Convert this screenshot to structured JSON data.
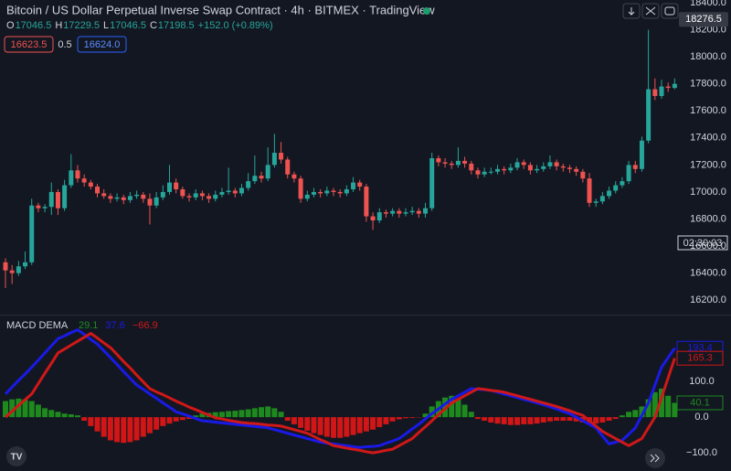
{
  "header": {
    "title": "Bitcoin / US Dollar Perpetual Inverse Swap Contract · 4h · BITMEX · TradingView",
    "ohlc": [
      {
        "key": "O",
        "value": "17046.5"
      },
      {
        "key": "H",
        "value": "17229.5"
      },
      {
        "key": "L",
        "value": "17046.5"
      },
      {
        "key": "C",
        "value": "17198.5"
      }
    ],
    "change": "+152.0 (+0.89%)"
  },
  "order_boxes": {
    "sell": "16623.5",
    "spread": "0.5",
    "buy": "16624.0"
  },
  "countdown": "02:30:03",
  "chart_data": [
    {
      "type": "candlestick",
      "up_color": "#26a69a",
      "down_color": "#ef5350",
      "grid": false,
      "last_price": 18276.5,
      "ylim": [
        16100,
        18420
      ],
      "yticks": [
        {
          "value": 16200,
          "label": "16200.0"
        },
        {
          "value": 16400,
          "label": "16400.0"
        },
        {
          "value": 16600,
          "label": "16600.0"
        },
        {
          "value": 16800,
          "label": "16800.0"
        },
        {
          "value": 17000,
          "label": "17000.0"
        },
        {
          "value": 17200,
          "label": "17200.0"
        },
        {
          "value": 17400,
          "label": "17400.0"
        },
        {
          "value": 17600,
          "label": "17600.0"
        },
        {
          "value": 17800,
          "label": "17800.0"
        },
        {
          "value": 18000,
          "label": "18000.0"
        },
        {
          "value": 18200,
          "label": "18200.0"
        },
        {
          "value": 18400,
          "label": "18400.0"
        }
      ],
      "open": [
        16480,
        16420,
        16400,
        16450,
        16480,
        16900,
        16880,
        16890,
        17000,
        16880,
        17050,
        17160,
        17100,
        17070,
        17040,
        16990,
        16970,
        16950,
        16960,
        16940,
        16970,
        16980,
        16950,
        16900,
        16960,
        17000,
        17070,
        17020,
        16970,
        16960,
        16990,
        16970,
        16950,
        16980,
        17000,
        17010,
        16990,
        17030,
        17080,
        17120,
        17100,
        17200,
        17290,
        17240,
        17130,
        17100,
        16950,
        16980,
        17000,
        16990,
        17010,
        17000,
        16990,
        17020,
        17070,
        17040,
        16820,
        16790,
        16850,
        16840,
        16860,
        16840,
        16850,
        16860,
        16840,
        16880,
        17250,
        17220,
        17210,
        17200,
        17230,
        17210,
        17160,
        17130,
        17150,
        17150,
        17170,
        17160,
        17180,
        17220,
        17200,
        17160,
        17170,
        17190,
        17220,
        17190,
        17180,
        17170,
        17150,
        17100,
        16920,
        16930,
        16970,
        17010,
        17050,
        17080,
        17200,
        17170,
        17380,
        17760,
        17710,
        17780,
        17770
      ],
      "high": [
        16510,
        16460,
        16490,
        16560,
        16950,
        16920,
        16910,
        17070,
        17020,
        17090,
        17280,
        17200,
        17130,
        17090,
        17060,
        17020,
        16990,
        16990,
        16980,
        17000,
        17010,
        17000,
        16990,
        17000,
        17050,
        17200,
        17100,
        17040,
        16990,
        17020,
        17010,
        16990,
        17010,
        17030,
        17180,
        17030,
        17060,
        17140,
        17270,
        17150,
        17330,
        17430,
        17370,
        17260,
        17150,
        17120,
        17010,
        17030,
        17020,
        17040,
        17030,
        17020,
        17050,
        17110,
        17090,
        17060,
        16850,
        16880,
        16870,
        16880,
        16880,
        16880,
        16890,
        16880,
        16920,
        17290,
        17270,
        17250,
        17230,
        17330,
        17260,
        17230,
        17180,
        17180,
        17180,
        17200,
        17190,
        17210,
        17250,
        17240,
        17220,
        17200,
        17220,
        17270,
        17240,
        17210,
        17200,
        17190,
        17170,
        17140,
        16950,
        17000,
        17040,
        17080,
        17110,
        17230,
        17230,
        17410,
        18200,
        17840,
        17830,
        17810,
        17840
      ],
      "low": [
        16290,
        16320,
        16380,
        16430,
        16460,
        16850,
        16850,
        16830,
        16830,
        16860,
        17030,
        17070,
        17040,
        17020,
        16960,
        16950,
        16920,
        16930,
        16910,
        16920,
        16950,
        16920,
        16760,
        16880,
        16940,
        16980,
        16990,
        16950,
        16930,
        16940,
        16940,
        16920,
        16930,
        16960,
        16980,
        16960,
        16970,
        17010,
        17060,
        17070,
        17080,
        17180,
        17210,
        17100,
        17070,
        16920,
        16930,
        16960,
        16960,
        16970,
        16970,
        16960,
        16970,
        17000,
        17010,
        16780,
        16720,
        16770,
        16810,
        16820,
        16810,
        16820,
        16830,
        16810,
        16810,
        16860,
        17190,
        17180,
        17170,
        17180,
        17180,
        17130,
        17100,
        17110,
        17130,
        17130,
        17130,
        17140,
        17160,
        17170,
        17130,
        17140,
        17150,
        17170,
        17160,
        17150,
        17140,
        17120,
        17070,
        16890,
        16890,
        16910,
        16950,
        16990,
        17030,
        17060,
        17140,
        17150,
        17360,
        17680,
        17690,
        17740,
        17760
      ],
      "close": [
        16420,
        16400,
        16450,
        16480,
        16900,
        16880,
        16890,
        17000,
        16880,
        17050,
        17160,
        17100,
        17070,
        17040,
        16990,
        16970,
        16950,
        16960,
        16940,
        16970,
        16980,
        16950,
        16900,
        16960,
        17000,
        17070,
        17020,
        16970,
        16960,
        16990,
        16970,
        16950,
        16980,
        17000,
        17010,
        16990,
        17030,
        17080,
        17120,
        17100,
        17200,
        17290,
        17240,
        17130,
        17100,
        16950,
        16980,
        17000,
        16990,
        17010,
        17000,
        16990,
        17020,
        17070,
        17040,
        16820,
        16790,
        16850,
        16840,
        16860,
        16840,
        16850,
        16860,
        16840,
        16880,
        17250,
        17220,
        17210,
        17200,
        17230,
        17210,
        17160,
        17130,
        17150,
        17150,
        17170,
        17160,
        17180,
        17220,
        17200,
        17160,
        17170,
        17190,
        17220,
        17190,
        17180,
        17170,
        17150,
        17100,
        16920,
        16930,
        16970,
        17010,
        17050,
        17080,
        17200,
        17170,
        17380,
        17760,
        17710,
        17780,
        17770,
        17800
      ]
    },
    {
      "type": "line",
      "title": "MACD DEMA",
      "grid": false,
      "ylim": [
        -151,
        285
      ],
      "yticks": [
        {
          "value": -100,
          "label": "−100.0"
        },
        {
          "value": 0,
          "label": "0.0"
        },
        {
          "value": 100,
          "label": "100.0"
        }
      ],
      "series": [
        {
          "type": "bar",
          "up_color": "#1e8a1e",
          "down_color": "#d01616",
          "color": "#1e8a1e",
          "legend_value": 29.1,
          "values": [
            45,
            50,
            52,
            50,
            45,
            35,
            25,
            20,
            15,
            10,
            8,
            5,
            -10,
            -25,
            -40,
            -55,
            -65,
            -70,
            -72,
            -70,
            -65,
            -55,
            -45,
            -35,
            -25,
            -18,
            -12,
            -8,
            -5,
            5,
            10,
            12,
            14,
            15,
            17,
            18,
            20,
            22,
            25,
            28,
            30,
            25,
            15,
            -10,
            -20,
            -30,
            -38,
            -45,
            -50,
            -55,
            -58,
            -58,
            -55,
            -50,
            -45,
            -40,
            -35,
            -28,
            -20,
            -12,
            -6,
            -3,
            -2,
            -1,
            10,
            30,
            45,
            55,
            60,
            50,
            35,
            15,
            -5,
            -10,
            -15,
            -18,
            -20,
            -22,
            -22,
            -20,
            -20,
            -18,
            -15,
            -12,
            -10,
            -10,
            -10,
            -12,
            -15,
            -18,
            -18,
            -15,
            -10,
            -5,
            5,
            15,
            20,
            30,
            50,
            70,
            80,
            60,
            40.1
          ]
        },
        {
          "type": "line",
          "color": "#1a1ae6",
          "legend_value": 37.6,
          "values": [
            65,
            84,
            103,
            121,
            140,
            160,
            180,
            200,
            220,
            228,
            237,
            245,
            232,
            218,
            205,
            186,
            167,
            148,
            128,
            109,
            90,
            78,
            65,
            53,
            40,
            28,
            15,
            9,
            3,
            -4,
            -10,
            -12,
            -14,
            -16,
            -18,
            -20,
            -22,
            -24,
            -26,
            -28,
            -30,
            -35,
            -40,
            -45,
            -50,
            -55,
            -60,
            -65,
            -70,
            -73,
            -75,
            -78,
            -80,
            -83,
            -85,
            -83,
            -82,
            -80,
            -73,
            -67,
            -60,
            -47,
            -33,
            -20,
            -5,
            10,
            23,
            37,
            50,
            60,
            70,
            80,
            78,
            77,
            75,
            70,
            65,
            60,
            55,
            50,
            45,
            40,
            35,
            29,
            23,
            16,
            10,
            0,
            -10,
            -20,
            -30,
            -53,
            -75,
            -70,
            -65,
            -48,
            -30,
            5,
            40,
            90,
            140,
            167,
            193.4
          ]
        },
        {
          "type": "line",
          "color": "#d01818",
          "legend_value": {
            "value": -66.9,
            "label": "−66.9"
          },
          "values": [
            0,
            16,
            33,
            49,
            65,
            94,
            123,
            151,
            180,
            191,
            202,
            213,
            224,
            235,
            222,
            208,
            195,
            176,
            156,
            138,
            118,
            99,
            80,
            71,
            63,
            54,
            45,
            37,
            28,
            21,
            13,
            6,
            -2,
            -5,
            -9,
            -12,
            -15,
            -17,
            -18,
            -20,
            -22,
            -23,
            -25,
            -30,
            -35,
            -40,
            -45,
            -54,
            -63,
            -71,
            -80,
            -83,
            -87,
            -90,
            -93,
            -97,
            -100,
            -97,
            -93,
            -90,
            -80,
            -70,
            -60,
            -43,
            -27,
            -10,
            7,
            23,
            40,
            50,
            60,
            70,
            80,
            78,
            75,
            73,
            70,
            65,
            60,
            55,
            50,
            45,
            40,
            35,
            30,
            24,
            18,
            11,
            5,
            -10,
            -25,
            -40,
            -50,
            -60,
            -70,
            -80,
            -70,
            -60,
            -30,
            0,
            55,
            110,
            165.3
          ]
        }
      ]
    }
  ]
}
